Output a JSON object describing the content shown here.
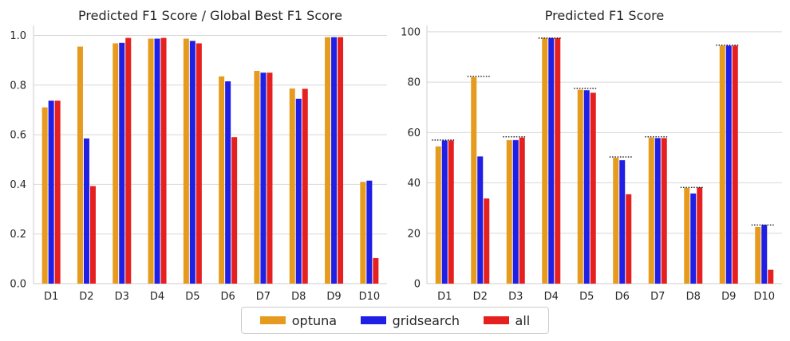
{
  "colors": {
    "optuna": "#e69b1f",
    "gridsearch": "#1f1fe6",
    "all": "#e61f1f"
  },
  "legend": [
    {
      "key": "optuna",
      "label": "optuna"
    },
    {
      "key": "gridsearch",
      "label": "gridsearch"
    },
    {
      "key": "all",
      "label": "all"
    }
  ],
  "chart_data": [
    {
      "type": "bar",
      "title": "Predicted F1 Score / Global Best F1 Score",
      "xlabel": "",
      "ylabel": "",
      "categories": [
        "D1",
        "D2",
        "D3",
        "D4",
        "D5",
        "D6",
        "D7",
        "D8",
        "D9",
        "D10"
      ],
      "ylim": [
        0,
        1.04
      ],
      "yticks": [
        0.0,
        0.2,
        0.4,
        0.6,
        0.8,
        1.0
      ],
      "ytick_labels": [
        "0.0",
        "0.2",
        "0.4",
        "0.6",
        "0.8",
        "1.0"
      ],
      "grid": "y",
      "series": [
        {
          "name": "optuna",
          "values": [
            0.71,
            0.955,
            0.968,
            0.987,
            0.987,
            0.835,
            0.857,
            0.786,
            0.993,
            0.41
          ]
        },
        {
          "name": "gridsearch",
          "values": [
            0.737,
            0.585,
            0.97,
            0.987,
            0.978,
            0.815,
            0.85,
            0.745,
            0.993,
            0.415
          ]
        },
        {
          "name": "all",
          "values": [
            0.737,
            0.393,
            0.99,
            0.99,
            0.968,
            0.59,
            0.85,
            0.785,
            0.993,
            0.103
          ]
        }
      ]
    },
    {
      "type": "bar",
      "title": "Predicted F1 Score",
      "xlabel": "",
      "ylabel": "",
      "categories": [
        "D1",
        "D2",
        "D3",
        "D4",
        "D5",
        "D6",
        "D7",
        "D8",
        "D9",
        "D10"
      ],
      "ylim": [
        0,
        102.5
      ],
      "yticks": [
        0,
        20,
        40,
        60,
        80,
        100
      ],
      "ytick_labels": [
        "0",
        "20",
        "40",
        "60",
        "80",
        "100"
      ],
      "grid": "y",
      "series": [
        {
          "name": "optuna",
          "values": [
            54.5,
            82.0,
            57.0,
            97.5,
            77.0,
            50.0,
            58.0,
            38.0,
            94.5,
            22.5
          ]
        },
        {
          "name": "gridsearch",
          "values": [
            56.8,
            50.5,
            57.0,
            97.5,
            76.8,
            49.0,
            57.8,
            35.8,
            94.5,
            23.3
          ]
        },
        {
          "name": "all",
          "values": [
            56.8,
            33.8,
            58.0,
            97.5,
            75.8,
            35.5,
            57.8,
            38.2,
            94.5,
            5.5
          ]
        }
      ],
      "global_best_dotted": [
        57.0,
        82.3,
        58.3,
        97.5,
        77.5,
        50.3,
        58.3,
        38.2,
        94.7,
        23.3
      ]
    }
  ]
}
